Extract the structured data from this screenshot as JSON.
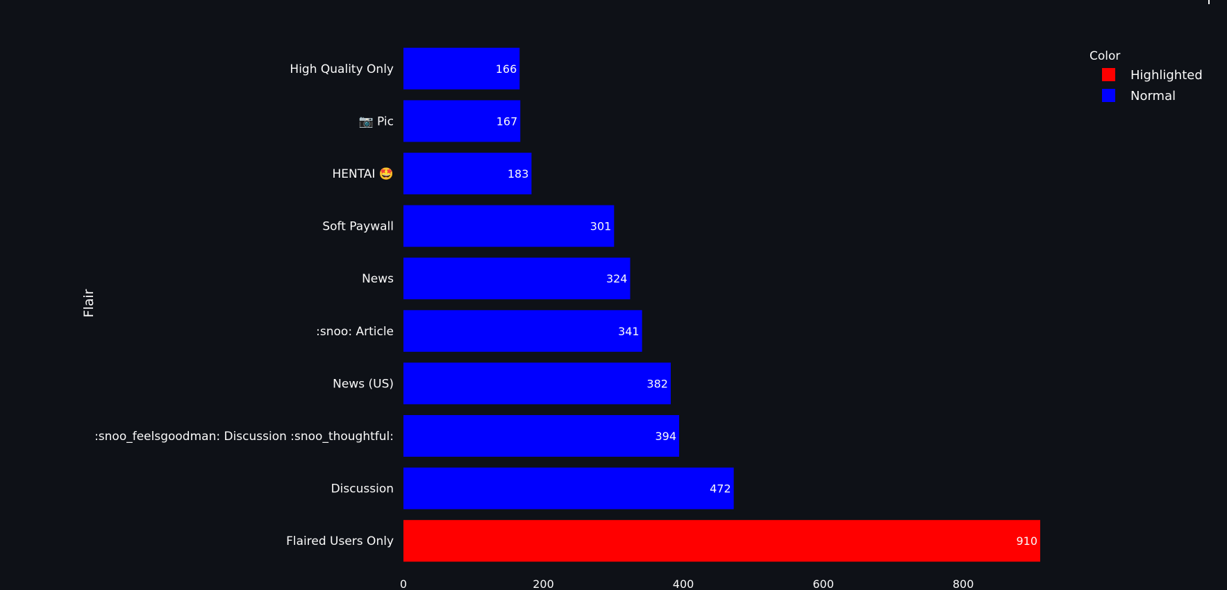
{
  "chart_data": {
    "type": "bar",
    "orientation": "horizontal",
    "categories": [
      "High Quality Only",
      "📷 Pic",
      "HENTAI 🤩",
      "Soft Paywall",
      "News",
      ":snoo: Article",
      "News (US)",
      ":snoo_feelsgoodman: Discussion :snoo_thoughtful:",
      "Discussion",
      "Flaired Users Only"
    ],
    "values": [
      166,
      167,
      183,
      301,
      324,
      341,
      382,
      394,
      472,
      910
    ],
    "color_group": [
      "Normal",
      "Normal",
      "Normal",
      "Normal",
      "Normal",
      "Normal",
      "Normal",
      "Normal",
      "Normal",
      "Highlighted"
    ],
    "ylabel": "Flair",
    "xlabel": "",
    "xlim": [
      0,
      910
    ],
    "xticks": [
      0,
      200,
      400,
      600,
      800
    ],
    "grid": false,
    "legend": {
      "title": "Color",
      "placement": "top-right",
      "entries": [
        {
          "name": "Highlighted",
          "color": "#ff0000"
        },
        {
          "name": "Normal",
          "color": "#0000ff"
        }
      ]
    }
  },
  "colors": {
    "background": "#0e1117",
    "text": "#fafafa",
    "Highlighted": "#ff0000",
    "Normal": "#0000ff"
  }
}
